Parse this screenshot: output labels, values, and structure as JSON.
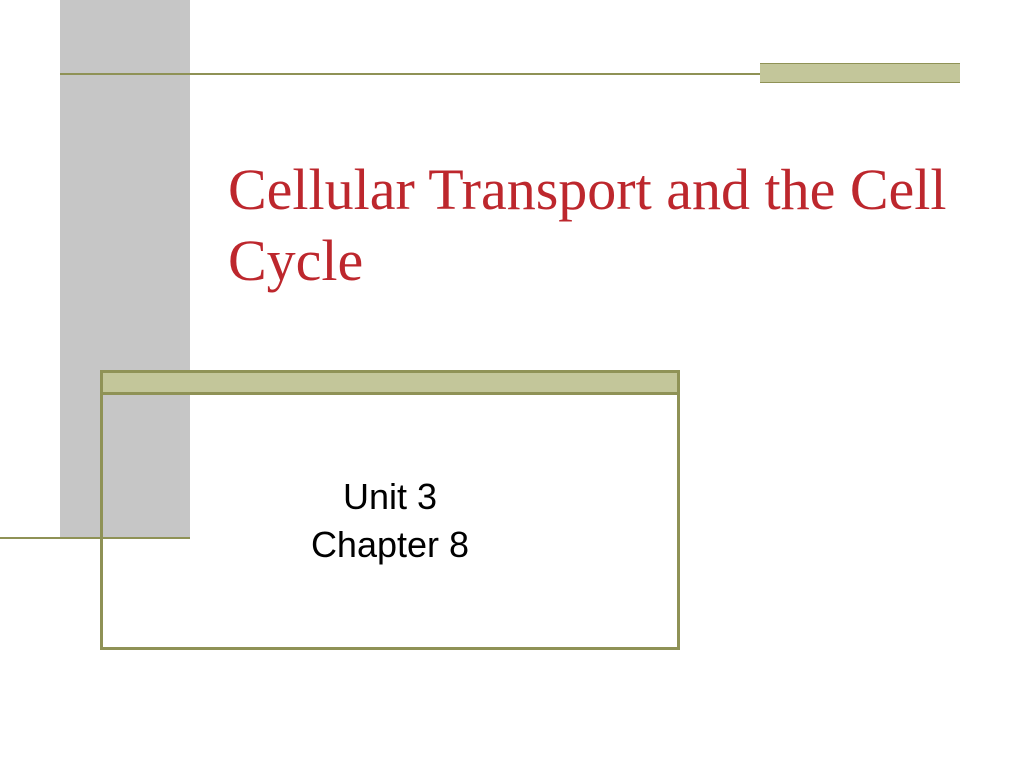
{
  "slide": {
    "title": "Cellular Transport and the Cell Cycle",
    "subtitle_line1": "Unit 3",
    "subtitle_line2": "Chapter 8"
  },
  "style": {
    "title_color": "#bd272d",
    "accent_olive": "#8f9256",
    "accent_light_olive": "#c3c69a",
    "sidebar_gray": "#c6c6c6",
    "background": "#ffffff",
    "title_fontsize": 58,
    "subtitle_fontsize": 36
  }
}
